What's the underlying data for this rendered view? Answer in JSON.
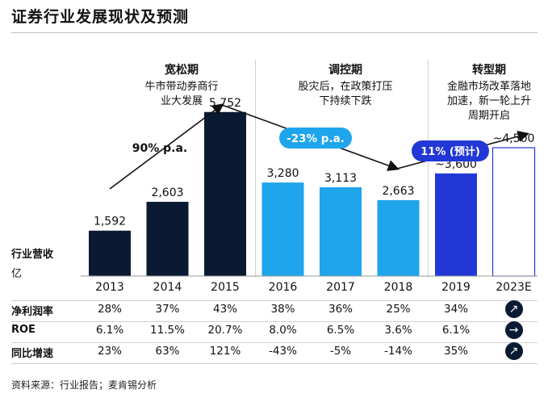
{
  "title": "证券行业发展现状及预测",
  "phases": [
    {
      "title": "宽松期",
      "desc1": "牛市带动券商行",
      "desc2": "业大发展"
    },
    {
      "title": "调控期",
      "desc1": "股灾后，在政策打压",
      "desc2": "下持续下跌"
    },
    {
      "title": "转型期",
      "desc1": "金融市场改革落地",
      "desc2": "加速，新一轮上升",
      "desc3": "周期开启"
    }
  ],
  "growth_labels": {
    "p1": "90% p.a.",
    "p2": "-23% p.a.",
    "p3": "11% (预计)"
  },
  "y_label_1": "行业营收",
  "y_label_2": "亿",
  "chart_data": {
    "type": "bar",
    "title": "证券行业发展现状及预测",
    "categories": [
      "2013",
      "2014",
      "2015",
      "2016",
      "2017",
      "2018",
      "2019",
      "2023E"
    ],
    "values": [
      1592,
      2603,
      5752,
      3280,
      3113,
      2663,
      3600,
      4500
    ],
    "value_labels": [
      "1,592",
      "2,603",
      "5,752",
      "3,280",
      "3,113",
      "2,663",
      "~3,600",
      "~4,500"
    ],
    "ylabel": "行业营收 亿",
    "ylim": [
      0,
      6000
    ],
    "colors": [
      "#0b1a33",
      "#0b1a33",
      "#0b1a33",
      "#1ea5ec",
      "#1ea5ec",
      "#1ea5ec",
      "#2238d6",
      "#ffffff"
    ],
    "growth": [
      "90% p.a.",
      "-23% p.a.",
      "11% (预计)"
    ]
  },
  "table": {
    "rows": [
      {
        "label": "净利润率",
        "values": [
          "28%",
          "37%",
          "43%",
          "38%",
          "36%",
          "25%",
          "34%"
        ],
        "trend": "up-right"
      },
      {
        "label": "ROE",
        "values": [
          "6.1%",
          "11.5%",
          "20.7%",
          "8.0%",
          "6.5%",
          "3.6%",
          "6.1%"
        ],
        "trend": "right"
      },
      {
        "label": "同比增速",
        "values": [
          "23%",
          "63%",
          "121%",
          "-43%",
          "-5%",
          "-14%",
          "35%"
        ],
        "trend": "up-right"
      }
    ]
  },
  "source": "资料来源：行业报告；麦肯锡分析"
}
